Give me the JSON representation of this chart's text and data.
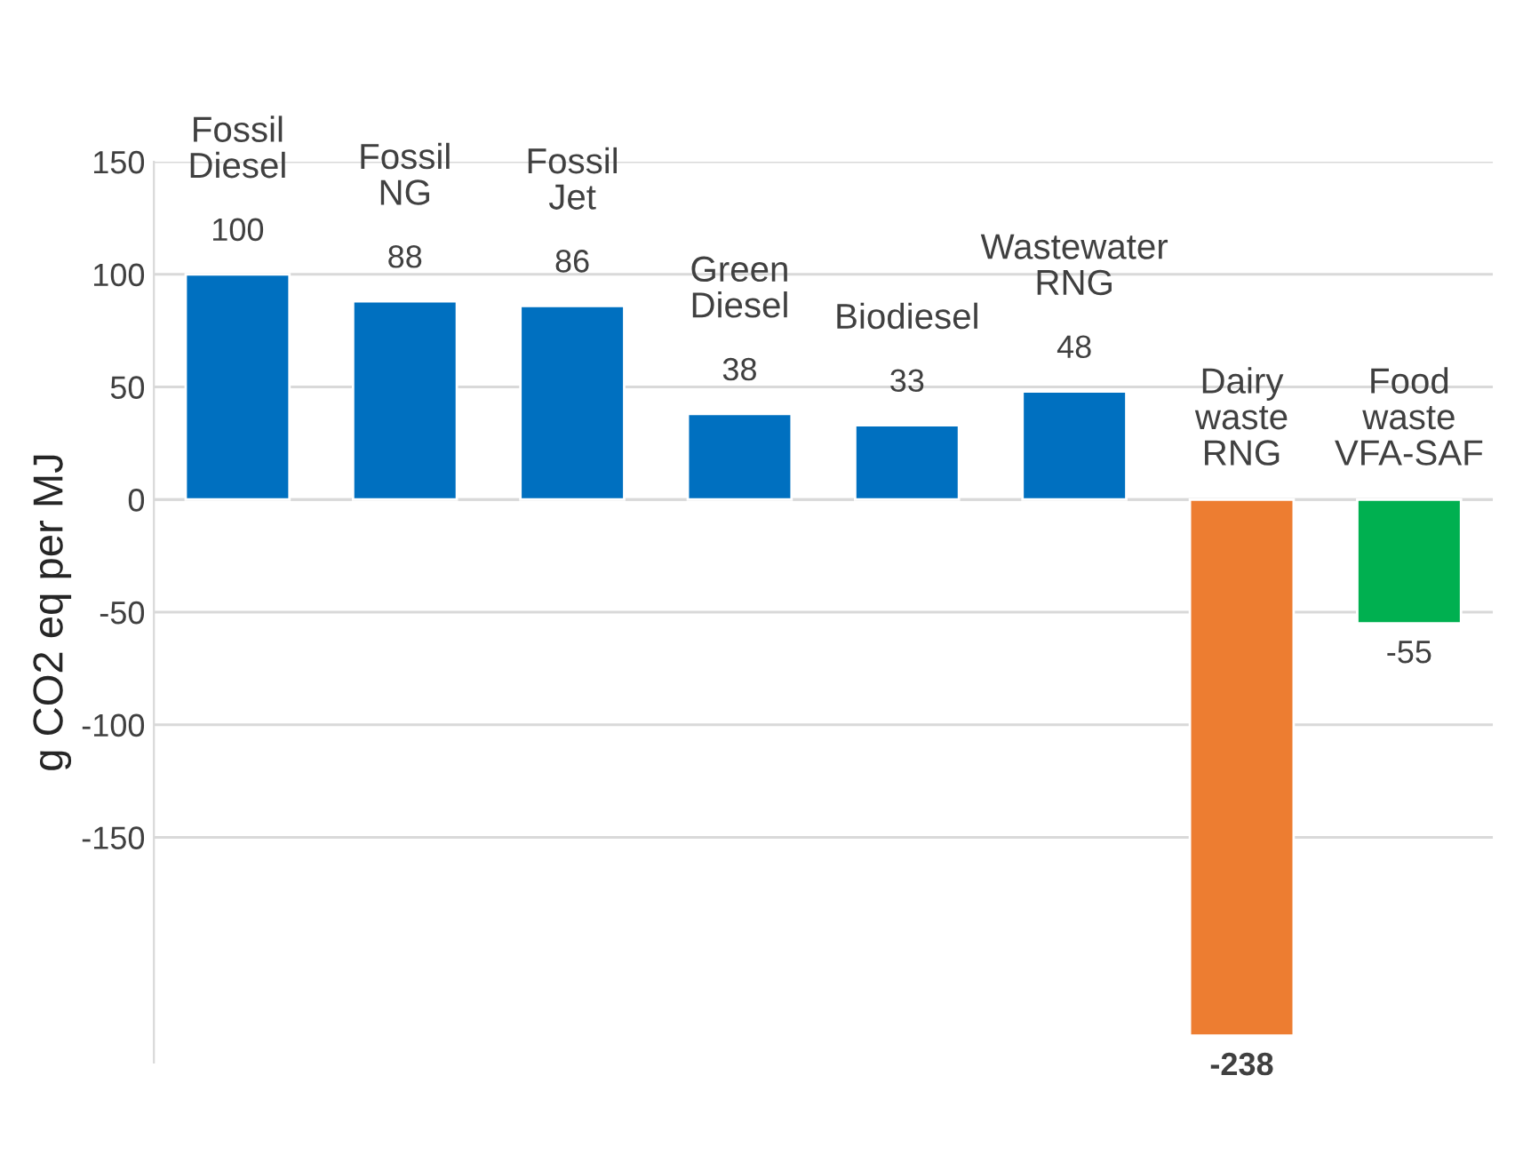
{
  "chart_data": {
    "type": "bar",
    "ylabel": "g CO2 eq per MJ",
    "categories": [
      "Fossil\nDiesel",
      "Fossil\nNG",
      "Fossil\nJet",
      "Green\nDiesel",
      "Biodiesel",
      "Wastewater\nRNG",
      "Dairy\nwaste\nRNG",
      "Food\nwaste\nVFA-SAF"
    ],
    "values": [
      100,
      88,
      86,
      38,
      33,
      48,
      -238,
      -55
    ],
    "colors": [
      "#0070c0",
      "#0070c0",
      "#0070c0",
      "#0070c0",
      "#0070c0",
      "#0070c0",
      "#ed7d31",
      "#00b050"
    ],
    "ylim": [
      -250,
      150
    ],
    "yticks": [
      -150,
      -100,
      -50,
      0,
      50,
      100,
      150
    ],
    "data_labels": true,
    "grid": "y",
    "legend": false
  }
}
